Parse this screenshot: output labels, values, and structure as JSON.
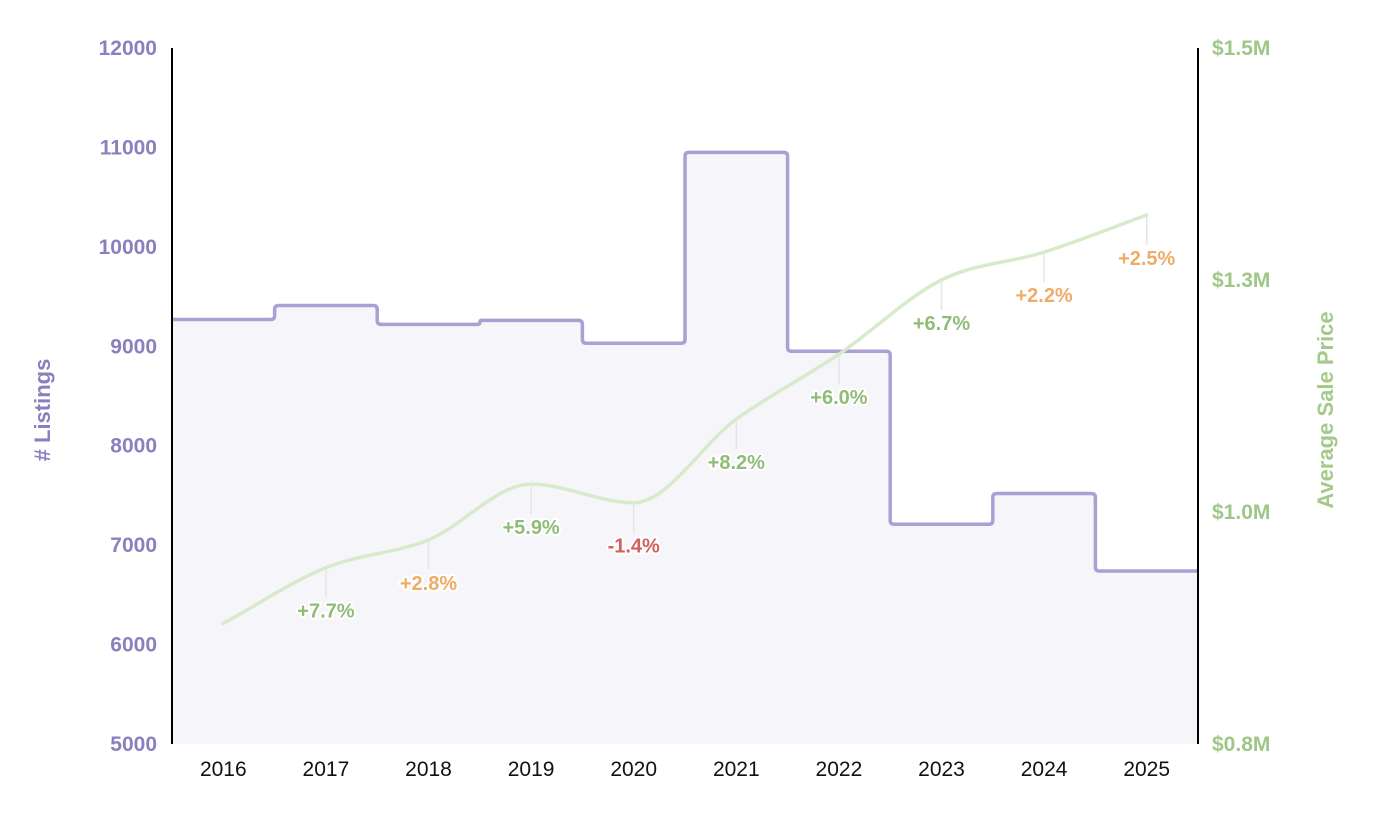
{
  "chart_data": {
    "type": "line",
    "x": [
      "2016",
      "2017",
      "2018",
      "2019",
      "2020",
      "2021",
      "2022",
      "2023",
      "2024",
      "2025"
    ],
    "series": [
      {
        "name": "# Listings",
        "axis": "left",
        "style": "step-area",
        "values": [
          9270,
          9410,
          9220,
          9260,
          9030,
          10950,
          8950,
          7210,
          7520,
          6740
        ]
      },
      {
        "name": "Average Sale Price",
        "axis": "right",
        "style": "smooth-line",
        "values": [
          0.88,
          0.94,
          0.97,
          1.03,
          1.01,
          1.1,
          1.17,
          1.25,
          1.28,
          1.32
        ],
        "annotations": [
          "",
          "+7.7%",
          "+2.8%",
          "+5.9%",
          "-1.4%",
          "+8.2%",
          "+6.0%",
          "+6.7%",
          "+2.2%",
          "+2.5%"
        ]
      }
    ],
    "y_left": {
      "label": "# Listings",
      "lim": [
        5000,
        12000
      ],
      "ticks": [
        "5000",
        "6000",
        "7000",
        "8000",
        "9000",
        "10000",
        "11000",
        "12000"
      ]
    },
    "y_right": {
      "label": "Average Sale Price",
      "lim": [
        0.75,
        1.5
      ],
      "unit": "millions USD",
      "ticks": [
        {
          "value": 0.75,
          "label": "$0.8M"
        },
        {
          "value": 1.0,
          "label": "$1.0M"
        },
        {
          "value": 1.25,
          "label": "$1.3M"
        },
        {
          "value": 1.5,
          "label": "$1.5M"
        }
      ]
    },
    "colors": {
      "listings_line": "#ab9fd3",
      "listings_fill": "#f6f5fa",
      "left_axis_text": "#8b80bf",
      "price_line": "#d8eacc",
      "right_axis_text": "#9fc688",
      "pct_high": "#8fbd77",
      "pct_mid": "#eeac66",
      "pct_negative": "#d0625e",
      "leader": "#e5e5e5",
      "axis": "#000000"
    },
    "grid": false
  }
}
